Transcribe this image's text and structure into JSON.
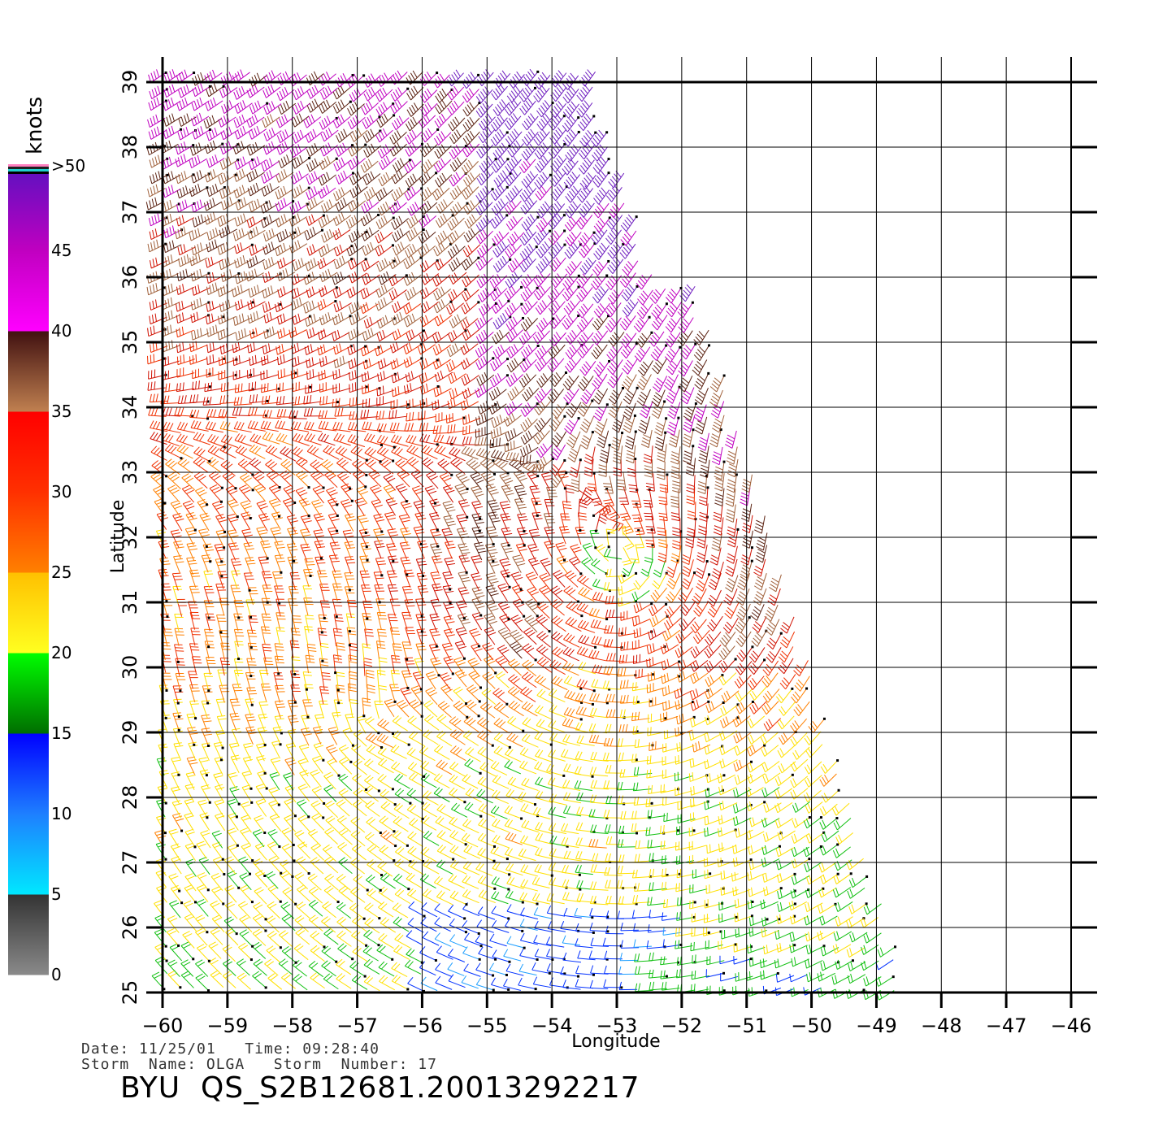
{
  "plot": {
    "x_axis_title": "Longitude",
    "y_axis_title": "Latitude",
    "x_ticks": [
      "-60",
      "-59",
      "-58",
      "-57",
      "-56",
      "-55",
      "-54",
      "-53",
      "-52",
      "-51",
      "-50",
      "-49",
      "-48",
      "-47",
      "-46"
    ],
    "y_ticks": [
      "25",
      "26",
      "27",
      "28",
      "29",
      "30",
      "31",
      "32",
      "33",
      "34",
      "35",
      "36",
      "37",
      "38",
      "39"
    ],
    "lon_range": [
      -60,
      -46
    ],
    "lat_range": [
      25,
      39
    ],
    "storm_center": {
      "lon": -52.8,
      "lat": 31.6
    },
    "secondary_center": {
      "lon": -56.8,
      "lat": 29.0
    }
  },
  "colorbar": {
    "unit": "knots",
    "labels": [
      "0",
      "5",
      "10",
      "15",
      "20",
      "25",
      "30",
      "35",
      "40",
      "45",
      ">50"
    ],
    "bands": [
      {
        "from": 0,
        "to": 5,
        "colors": [
          "#8a8a8a",
          "#333333"
        ]
      },
      {
        "from": 5,
        "to": 10,
        "colors": [
          "#00e8ff",
          "#1e7fff"
        ]
      },
      {
        "from": 10,
        "to": 15,
        "colors": [
          "#1e7fff",
          "#0000ff"
        ]
      },
      {
        "from": 15,
        "to": 20,
        "colors": [
          "#006e00",
          "#00ff00"
        ]
      },
      {
        "from": 20,
        "to": 25,
        "colors": [
          "#ffff20",
          "#ffc000"
        ]
      },
      {
        "from": 25,
        "to": 30,
        "colors": [
          "#ff8000",
          "#ff3000"
        ]
      },
      {
        "from": 30,
        "to": 35,
        "colors": [
          "#ff3000",
          "#ff0000"
        ]
      },
      {
        "from": 35,
        "to": 40,
        "colors": [
          "#c08050",
          "#401010"
        ]
      },
      {
        "from": 40,
        "to": 45,
        "colors": [
          "#ff00ff",
          "#c000c0"
        ]
      },
      {
        "from": 45,
        "to": 50,
        "colors": [
          "#c000c0",
          "#6010c0"
        ]
      }
    ]
  },
  "info": {
    "line1": "Date: 11/25/01   Time: 09:28:40",
    "line2": "Storm  Name: OLGA   Storm  Number: 17",
    "title": "BYU  QS_S2B12681.20013292217"
  }
}
